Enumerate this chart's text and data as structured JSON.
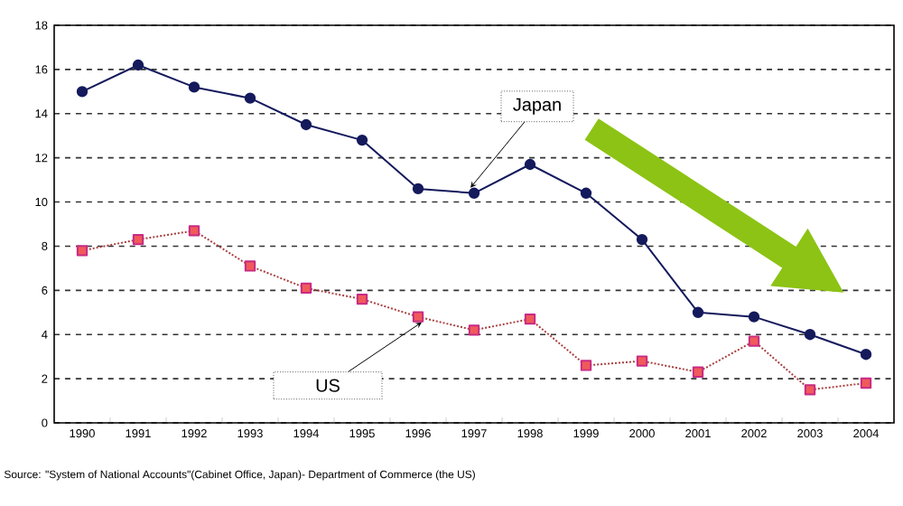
{
  "chart_data": {
    "type": "line",
    "categories": [
      "1990",
      "1991",
      "1992",
      "1993",
      "1994",
      "1995",
      "1996",
      "1997",
      "1998",
      "1999",
      "2000",
      "2001",
      "2002",
      "2003",
      "2004"
    ],
    "series": [
      {
        "name": "Japan",
        "color": "#141a5c",
        "marker": "circle",
        "line_style": "solid",
        "values": [
          15.0,
          16.2,
          15.2,
          14.7,
          13.5,
          12.8,
          10.6,
          10.4,
          11.7,
          10.4,
          8.3,
          5.0,
          4.8,
          4.0,
          3.1
        ]
      },
      {
        "name": "US",
        "color": "#f05a5a",
        "marker": "square",
        "line_style": "dotted",
        "values": [
          7.8,
          8.3,
          8.7,
          7.1,
          6.1,
          5.6,
          4.8,
          4.2,
          4.7,
          2.6,
          2.8,
          2.3,
          3.7,
          1.5,
          1.8
        ]
      }
    ],
    "ylim": [
      0,
      18
    ],
    "yticks": [
      0,
      2,
      4,
      6,
      8,
      10,
      12,
      14,
      16,
      18
    ],
    "grid": "y",
    "legend": false,
    "annotations": [
      "Source: \"System of National Accounts\"(Cabinet Office, Japan)- Department of Commerce (the US)"
    ]
  }
}
